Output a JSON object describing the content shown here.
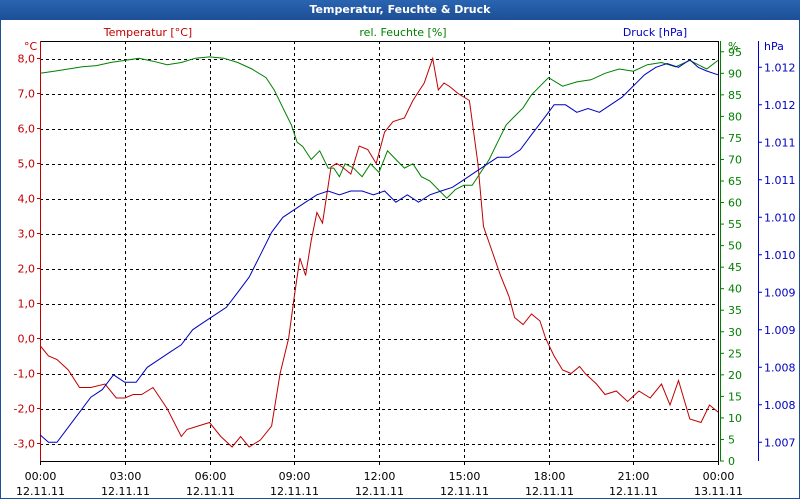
{
  "window": {
    "title": "Temperatur, Feuchte & Druck"
  },
  "chart_data": {
    "type": "line",
    "title": "Temperatur, Feuchte & Druck",
    "x_labels": [
      {
        "time": "00:00",
        "date": "12.11.11"
      },
      {
        "time": "03:00",
        "date": "12.11.11"
      },
      {
        "time": "06:00",
        "date": "12.11.11"
      },
      {
        "time": "09:00",
        "date": "12.11.11"
      },
      {
        "time": "12:00",
        "date": "12.11.11"
      },
      {
        "time": "15:00",
        "date": "12.11.11"
      },
      {
        "time": "18:00",
        "date": "12.11.11"
      },
      {
        "time": "21:00",
        "date": "12.11.11"
      },
      {
        "time": "00:00",
        "date": "13.11.11"
      }
    ],
    "xlim": [
      0,
      24
    ],
    "grid": true,
    "axes": {
      "temperature": {
        "label": "Temperatur [°C]",
        "unit": "°C",
        "color": "#c00000",
        "ylim": [
          -3.5,
          8.5
        ],
        "ticks": [
          "-3,0",
          "-2,0",
          "-1,0",
          "0,0",
          "1,0",
          "2,0",
          "3,0",
          "4,0",
          "5,0",
          "6,0",
          "7,0",
          "8,0"
        ],
        "tick_values": [
          -3,
          -2,
          -1,
          0,
          1,
          2,
          3,
          4,
          5,
          6,
          7,
          8
        ]
      },
      "humidity": {
        "label": "rel. Feuchte [%]",
        "unit": "%",
        "color": "#008000",
        "ylim": [
          0,
          97.5
        ],
        "ticks": [
          "0",
          "5",
          "10",
          "15",
          "20",
          "25",
          "30",
          "35",
          "40",
          "45",
          "50",
          "55",
          "60",
          "65",
          "70",
          "75",
          "80",
          "85",
          "90",
          "95"
        ],
        "tick_values": [
          0,
          5,
          10,
          15,
          20,
          25,
          30,
          35,
          40,
          45,
          50,
          55,
          60,
          65,
          70,
          75,
          80,
          85,
          90,
          95
        ]
      },
      "pressure": {
        "label": "Druck [hPa]",
        "unit": "hPa",
        "color": "#0000c0",
        "ylim": [
          1006.75,
          1012.35
        ],
        "ticks": [
          "1.007",
          "1.008",
          "1.008",
          "1.009",
          "1.009",
          "1.010",
          "1.010",
          "1.011",
          "1.011",
          "1.012",
          "1.012"
        ],
        "tick_values": [
          1007.0,
          1007.5,
          1008.0,
          1008.5,
          1009.0,
          1009.5,
          1010.0,
          1010.5,
          1011.0,
          1011.5,
          1012.0
        ]
      }
    },
    "series": [
      {
        "name": "Temperatur [°C]",
        "axis": "temperature",
        "color": "#c00000",
        "x": [
          0,
          0.3,
          0.6,
          1.0,
          1.4,
          1.8,
          2.3,
          2.7,
          3.0,
          3.3,
          3.6,
          4.0,
          4.5,
          5.0,
          5.2,
          5.6,
          6.0,
          6.4,
          6.8,
          7.1,
          7.4,
          7.8,
          8.2,
          8.5,
          8.8,
          9.0,
          9.2,
          9.4,
          9.6,
          9.8,
          10.0,
          10.3,
          10.5,
          10.7,
          11.0,
          11.3,
          11.6,
          11.9,
          12.2,
          12.5,
          12.9,
          13.2,
          13.6,
          13.9,
          14.1,
          14.3,
          14.5,
          14.8,
          15.2,
          15.5,
          15.7,
          16.0,
          16.3,
          16.6,
          16.8,
          17.1,
          17.4,
          17.7,
          17.9,
          18.2,
          18.5,
          18.8,
          19.1,
          19.3,
          19.7,
          20.0,
          20.4,
          20.8,
          21.2,
          21.6,
          22.0,
          22.3,
          22.6,
          23.0,
          23.4,
          23.7,
          24.0
        ],
        "values": [
          -0.2,
          -0.5,
          -0.6,
          -0.9,
          -1.4,
          -1.4,
          -1.3,
          -1.7,
          -1.7,
          -1.6,
          -1.6,
          -1.4,
          -2.0,
          -2.8,
          -2.6,
          -2.5,
          -2.4,
          -2.8,
          -3.1,
          -2.8,
          -3.1,
          -2.9,
          -2.5,
          -1.0,
          0.0,
          1.2,
          2.3,
          1.8,
          2.8,
          3.6,
          3.3,
          4.9,
          5.0,
          4.9,
          4.7,
          5.5,
          5.4,
          5.0,
          5.9,
          6.2,
          6.3,
          6.8,
          7.3,
          8.0,
          7.1,
          7.3,
          7.2,
          7.0,
          6.8,
          5.0,
          3.2,
          2.5,
          1.8,
          1.2,
          0.6,
          0.4,
          0.7,
          0.5,
          0.0,
          -0.5,
          -0.9,
          -1.0,
          -0.8,
          -1.0,
          -1.3,
          -1.6,
          -1.5,
          -1.8,
          -1.5,
          -1.7,
          -1.3,
          -1.9,
          -1.2,
          -2.3,
          -2.4,
          -1.9,
          -2.1
        ]
      },
      {
        "name": "rel. Feuchte [%]",
        "axis": "humidity",
        "color": "#008000",
        "x": [
          0,
          0.5,
          1.0,
          1.5,
          2.0,
          2.5,
          3.0,
          3.5,
          4.0,
          4.5,
          5.0,
          5.5,
          6.0,
          6.5,
          7.0,
          7.5,
          8.0,
          8.3,
          8.6,
          8.9,
          9.1,
          9.3,
          9.6,
          9.9,
          10.2,
          10.4,
          10.6,
          10.8,
          11.1,
          11.4,
          11.7,
          12.0,
          12.3,
          12.6,
          12.9,
          13.2,
          13.5,
          13.8,
          14.1,
          14.4,
          14.7,
          15.0,
          15.3,
          15.6,
          15.9,
          16.2,
          16.5,
          16.8,
          17.1,
          17.4,
          17.7,
          18.0,
          18.5,
          19.0,
          19.5,
          20.0,
          20.5,
          21.0,
          21.5,
          22.0,
          22.5,
          23.0,
          23.3,
          23.6,
          24.0
        ],
        "values": [
          90,
          90.5,
          91,
          91.5,
          91.8,
          92.5,
          93,
          93.5,
          92.8,
          92,
          92.5,
          93.5,
          93.8,
          93.5,
          92.5,
          91,
          89,
          86,
          82,
          78,
          74,
          73,
          70,
          72,
          68,
          68,
          66,
          69,
          68,
          66,
          69,
          67,
          72,
          70,
          68,
          69,
          66,
          65,
          63,
          61,
          63,
          64,
          64,
          67,
          70,
          74,
          78,
          80,
          82,
          85,
          87,
          89,
          87,
          88,
          88.5,
          90,
          91,
          90.5,
          92,
          92.5,
          91.5,
          93,
          92,
          91,
          93
        ]
      },
      {
        "name": "Druck [hPa]",
        "axis": "pressure",
        "color": "#0000c0",
        "x": [
          0,
          0.3,
          0.6,
          1.0,
          1.4,
          1.8,
          2.2,
          2.6,
          3.0,
          3.4,
          3.8,
          4.2,
          4.6,
          5.0,
          5.4,
          5.8,
          6.2,
          6.6,
          7.0,
          7.4,
          7.8,
          8.2,
          8.6,
          9.0,
          9.4,
          9.8,
          10.2,
          10.6,
          11.0,
          11.4,
          11.8,
          12.2,
          12.6,
          13.0,
          13.4,
          13.8,
          14.2,
          14.6,
          15.0,
          15.4,
          15.8,
          16.2,
          16.6,
          17.0,
          17.4,
          17.8,
          18.2,
          18.6,
          19.0,
          19.4,
          19.8,
          20.2,
          20.6,
          21.0,
          21.4,
          21.8,
          22.2,
          22.6,
          23.0,
          23.3,
          23.6,
          24.0
        ],
        "values": [
          1007.1,
          1007.0,
          1007.0,
          1007.2,
          1007.4,
          1007.6,
          1007.7,
          1007.9,
          1007.8,
          1007.8,
          1008.0,
          1008.1,
          1008.2,
          1008.3,
          1008.5,
          1008.6,
          1008.7,
          1008.8,
          1009.0,
          1009.2,
          1009.5,
          1009.8,
          1010.0,
          1010.1,
          1010.2,
          1010.3,
          1010.35,
          1010.3,
          1010.35,
          1010.35,
          1010.3,
          1010.35,
          1010.2,
          1010.3,
          1010.2,
          1010.3,
          1010.35,
          1010.4,
          1010.5,
          1010.6,
          1010.7,
          1010.8,
          1010.8,
          1010.9,
          1011.1,
          1011.3,
          1011.5,
          1011.5,
          1011.4,
          1011.45,
          1011.4,
          1011.5,
          1011.6,
          1011.75,
          1011.9,
          1012.0,
          1012.05,
          1012.0,
          1012.1,
          1012.0,
          1011.95,
          1011.9
        ]
      }
    ]
  }
}
